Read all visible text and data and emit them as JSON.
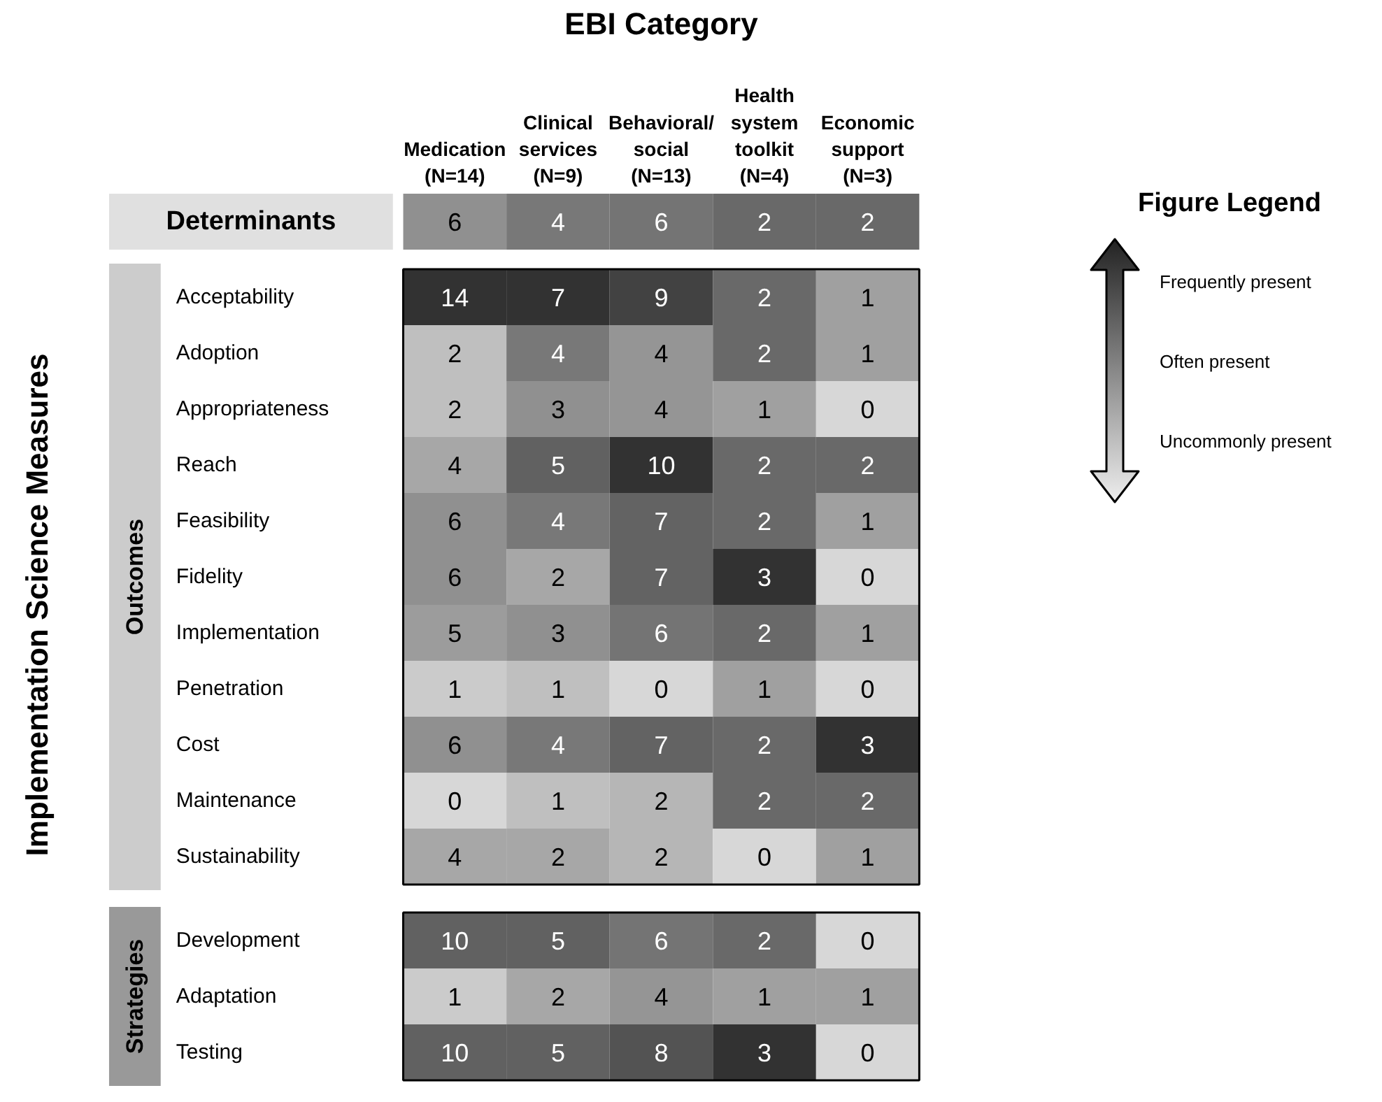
{
  "chart_data": [
    {
      "type": "heatmap",
      "title": "EBI Category",
      "categories": [
        "Medication\n(N=14)",
        "Clinical\nservices\n(N=9)",
        "Behavioral/\nsocial\n(N=13)",
        "Health\nsystem\ntoolkit\n(N=4)",
        "Economic\nsupport\n(N=3)"
      ],
      "y_categories": [
        "Determinants"
      ],
      "cells": [
        [
          6,
          4,
          6,
          2,
          2
        ]
      ],
      "data_labels": true,
      "legend_title": "Figure Legend"
    },
    {
      "type": "heatmap",
      "ylabel": "Outcomes",
      "categories": [
        null,
        null,
        null,
        null,
        null
      ],
      "tick_labels": false,
      "y_categories": [
        "Acceptability",
        "Adoption",
        "Appropriateness",
        "Reach",
        "Feasibility",
        "Fidelity",
        "Implementation",
        "Penetration",
        "Cost",
        "Maintenance",
        "Sustainability"
      ],
      "cells": [
        [
          14,
          7,
          9,
          2,
          1
        ],
        [
          2,
          4,
          4,
          2,
          1
        ],
        [
          2,
          3,
          4,
          1,
          0
        ],
        [
          4,
          5,
          10,
          2,
          2
        ],
        [
          6,
          4,
          7,
          2,
          1
        ],
        [
          6,
          2,
          7,
          3,
          0
        ],
        [
          5,
          3,
          6,
          2,
          1
        ],
        [
          1,
          1,
          0,
          1,
          0
        ],
        [
          6,
          4,
          7,
          2,
          3
        ],
        [
          0,
          1,
          2,
          2,
          2
        ],
        [
          4,
          2,
          2,
          0,
          1
        ]
      ],
      "data_labels": true,
      "annotations": [
        "Frequently present",
        "Often present",
        "Uncommonly present",
        "Implementation Science Measures"
      ]
    },
    {
      "type": "heatmap",
      "ylabel": "Strategies",
      "categories": [
        null,
        null,
        null,
        null,
        null
      ],
      "tick_labels": false,
      "y_categories": [
        "Development",
        "Adaptation",
        "Testing"
      ],
      "cells": [
        [
          10,
          5,
          6,
          2,
          0
        ],
        [
          1,
          2,
          4,
          1,
          1
        ],
        [
          10,
          5,
          8,
          3,
          0
        ]
      ],
      "data_labels": true
    }
  ]
}
